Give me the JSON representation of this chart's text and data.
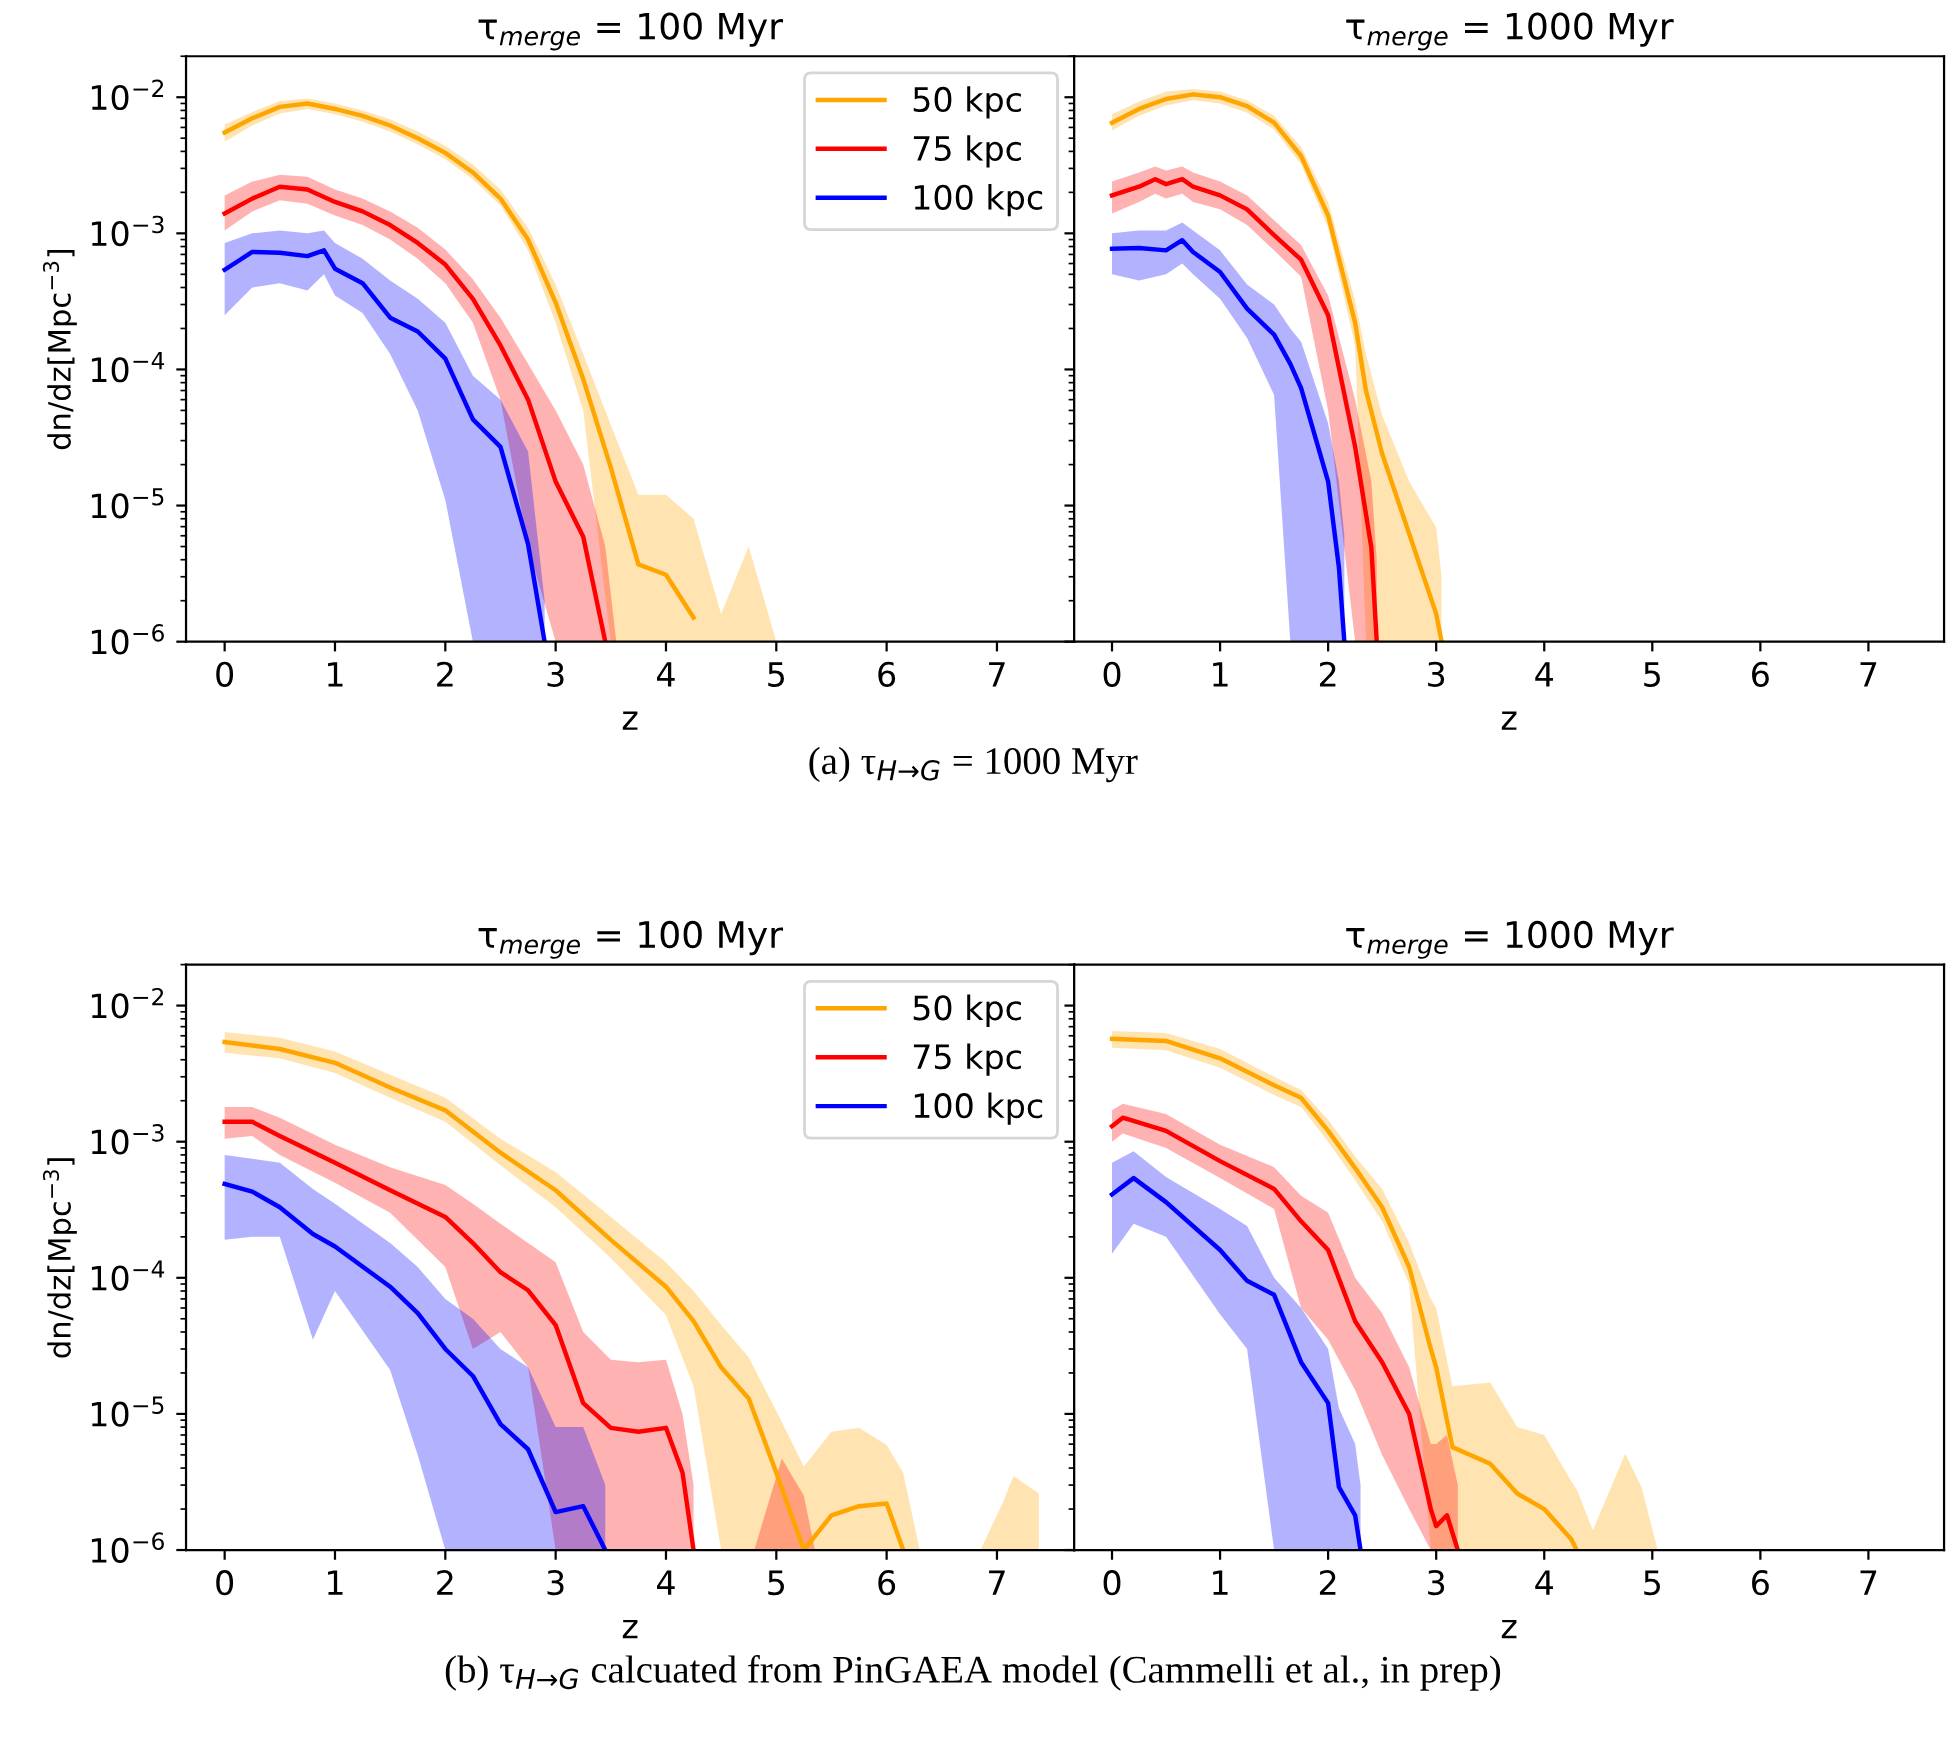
{
  "chart_data": [
    {
      "type": "line",
      "title": "τ$_{merge}$ = 100 Myr",
      "xlabel": "z",
      "ylabel": "dn/dz[Mpc$^{−3}$]",
      "log": "y",
      "legend": "top right",
      "xlim": [
        -0.35,
        7.7
      ],
      "ylim": [
        1e-06,
        0.02
      ],
      "xticks": [
        0,
        1,
        2,
        3,
        4,
        5,
        6,
        7
      ],
      "yticks": [
        {
          "value": 1e-06,
          "label": "10$^{−6}$"
        },
        {
          "value": 1e-05,
          "label": "10$^{−5}$"
        },
        {
          "value": 0.0001,
          "label": "10$^{−4}$"
        },
        {
          "value": 0.001,
          "label": "10$^{−3}$"
        },
        {
          "value": 0.01,
          "label": "10$^{−2}$"
        }
      ],
      "annotations": [
        "(a) τ$_{H→G}$ = 1000 Myr"
      ],
      "series": [
        {
          "name": "50 kpc",
          "color": "#ffa500",
          "x": [
            0,
            0.25,
            0.5,
            0.75,
            1,
            1.25,
            1.5,
            1.75,
            2,
            2.25,
            2.5,
            2.75,
            3,
            3.25,
            3.5,
            3.75,
            4,
            4.25,
            4.5,
            4.75,
            5
          ],
          "values": [
            0.0055,
            0.007,
            0.0085,
            0.009,
            0.0082,
            0.0073,
            0.0062,
            0.005,
            0.0039,
            0.0028,
            0.0018,
            0.0009,
            0.00031,
            8.5e-05,
            1.9e-05,
            3.7e-06,
            3.1e-06,
            1.5e-06,
            null,
            null,
            null
          ],
          "lower": [
            0.0047,
            0.0062,
            0.0076,
            0.0082,
            0.0075,
            0.0066,
            0.0056,
            0.0045,
            0.0035,
            0.0025,
            0.0016,
            0.00075,
            0.00022,
            5e-05,
            1e-06,
            1e-06,
            1e-06,
            1e-06,
            1e-06,
            1e-06,
            1e-06
          ],
          "upper": [
            0.0063,
            0.0078,
            0.0094,
            0.0098,
            0.009,
            0.008,
            0.0069,
            0.0056,
            0.0044,
            0.0032,
            0.0021,
            0.0011,
            0.00042,
            0.00013,
            3.9e-05,
            1.2e-05,
            1.2e-05,
            8e-06,
            1.6e-06,
            5e-06,
            1e-06
          ]
        },
        {
          "name": "75 kpc",
          "color": "#ff0000",
          "x": [
            0,
            0.25,
            0.5,
            0.75,
            1,
            1.25,
            1.5,
            1.75,
            2,
            2.25,
            2.5,
            2.75,
            3,
            3.25,
            3.45,
            3.55
          ],
          "values": [
            0.0014,
            0.0018,
            0.0022,
            0.0021,
            0.0017,
            0.00145,
            0.00115,
            0.00085,
            0.00059,
            0.00033,
            0.00015,
            6e-05,
            1.5e-05,
            5.9e-06,
            1e-06,
            null
          ],
          "lower": [
            0.00105,
            0.00145,
            0.00175,
            0.00165,
            0.00135,
            0.00115,
            0.0009,
            0.00065,
            0.00043,
            0.00022,
            6e-05,
            5e-06,
            1e-06,
            1e-06,
            1e-06,
            1e-06
          ],
          "upper": [
            0.0019,
            0.0024,
            0.0027,
            0.0026,
            0.0021,
            0.0018,
            0.00145,
            0.0011,
            0.00076,
            0.00046,
            0.00024,
            0.00011,
            5e-05,
            2e-05,
            5e-06,
            1e-06
          ]
        },
        {
          "name": "100 kpc",
          "color": "#0000ff",
          "x": [
            0,
            0.25,
            0.5,
            0.75,
            0.9,
            1,
            1.25,
            1.5,
            1.75,
            2,
            2.25,
            2.5,
            2.75,
            2.9
          ],
          "values": [
            0.00054,
            0.00073,
            0.00072,
            0.00068,
            0.00075,
            0.00055,
            0.00043,
            0.00024,
            0.00019,
            0.00012,
            4.3e-05,
            2.7e-05,
            5.2e-06,
            1e-06
          ],
          "lower": [
            0.00025,
            0.0004,
            0.00043,
            0.00038,
            0.0005,
            0.00035,
            0.00026,
            0.00013,
            5e-05,
            1.1e-05,
            1e-06,
            1e-06,
            1e-06,
            1e-06
          ],
          "upper": [
            0.00085,
            0.001,
            0.00105,
            0.001,
            0.00105,
            0.00085,
            0.00065,
            0.00045,
            0.00033,
            0.00022,
            9e-05,
            6e-05,
            2.5e-05,
            2e-06
          ]
        }
      ]
    },
    {
      "type": "line",
      "title": "τ$_{merge}$ = 1000 Myr",
      "xlabel": "z",
      "log": "y",
      "tick_labels": "x",
      "xlim": [
        -0.35,
        7.7
      ],
      "ylim": [
        1e-06,
        0.02
      ],
      "xticks": [
        0,
        1,
        2,
        3,
        4,
        5,
        6,
        7
      ],
      "yticks": [
        {
          "value": 1e-06,
          "label": null
        },
        {
          "value": 1e-05,
          "label": null
        },
        {
          "value": 0.0001,
          "label": null
        },
        {
          "value": 0.001,
          "label": null
        },
        {
          "value": 0.01,
          "label": null
        }
      ],
      "series": [
        {
          "color": "#ffa500",
          "x": [
            0,
            0.25,
            0.5,
            0.75,
            1,
            1.25,
            1.5,
            1.75,
            2,
            2.25,
            2.35,
            2.5,
            2.75,
            3.0,
            3.05
          ],
          "values": [
            0.0065,
            0.0082,
            0.0097,
            0.0105,
            0.01,
            0.0086,
            0.0065,
            0.0037,
            0.00135,
            0.00022,
            7e-05,
            2.4e-05,
            6.2e-06,
            1.6e-06,
            1e-06
          ],
          "lower": [
            0.0057,
            0.0073,
            0.0087,
            0.0095,
            0.009,
            0.0077,
            0.0058,
            0.0032,
            0.0011,
            0.00015,
            1e-06,
            1e-06,
            1e-06,
            1e-06,
            1e-06
          ],
          "upper": [
            0.0075,
            0.0093,
            0.011,
            0.0115,
            0.011,
            0.0095,
            0.0073,
            0.0043,
            0.0017,
            0.00032,
            0.00013,
            4.6e-05,
            1.5e-05,
            6.9e-06,
            3e-06
          ]
        },
        {
          "color": "#ff0000",
          "x": [
            0,
            0.25,
            0.4,
            0.5,
            0.65,
            0.75,
            1,
            1.25,
            1.5,
            1.75,
            2,
            2.25,
            2.4,
            2.45
          ],
          "values": [
            0.0019,
            0.0022,
            0.0025,
            0.0023,
            0.0025,
            0.0022,
            0.0019,
            0.0015,
            0.00097,
            0.00064,
            0.00025,
            2.7e-05,
            4.9e-06,
            1e-06
          ],
          "lower": [
            0.0014,
            0.0017,
            0.00195,
            0.0018,
            0.00195,
            0.0017,
            0.0015,
            0.00115,
            0.00075,
            0.00048,
            5e-05,
            1e-06,
            1e-06,
            1e-06
          ],
          "upper": [
            0.0024,
            0.0028,
            0.0031,
            0.0029,
            0.0031,
            0.0028,
            0.0024,
            0.0019,
            0.00125,
            0.00082,
            0.00035,
            6e-05,
            1.5e-05,
            4e-06
          ]
        },
        {
          "color": "#0000ff",
          "x": [
            0,
            0.25,
            0.5,
            0.65,
            0.75,
            1,
            1.25,
            1.5,
            1.65,
            1.75,
            2,
            2.1,
            2.15
          ],
          "values": [
            0.00077,
            0.00078,
            0.00075,
            0.00089,
            0.00073,
            0.00052,
            0.00028,
            0.00018,
            0.00011,
            7.3e-05,
            1.5e-05,
            3.5e-06,
            1e-06
          ],
          "lower": [
            0.0005,
            0.00045,
            0.0005,
            0.0006,
            0.0005,
            0.00033,
            0.00017,
            6.5e-05,
            1e-06,
            1e-06,
            1e-06,
            1e-06,
            1e-06
          ],
          "upper": [
            0.001,
            0.00105,
            0.00105,
            0.0012,
            0.00105,
            0.00075,
            0.00042,
            0.0003,
            0.0002,
            0.00016,
            4e-05,
            1.5e-05,
            6e-06
          ]
        }
      ]
    },
    {
      "type": "line",
      "title": "τ$_{merge}$ = 100 Myr",
      "xlabel": "z",
      "ylabel": "dn/dz[Mpc$^{−3}$]",
      "log": "y",
      "legend": "top right",
      "xlim": [
        -0.35,
        7.7
      ],
      "ylim": [
        1e-06,
        0.02
      ],
      "xticks": [
        0,
        1,
        2,
        3,
        4,
        5,
        6,
        7
      ],
      "yticks": [
        {
          "value": 1e-06,
          "label": "10$^{−6}$"
        },
        {
          "value": 1e-05,
          "label": "10$^{−5}$"
        },
        {
          "value": 0.0001,
          "label": "10$^{−4}$"
        },
        {
          "value": 0.001,
          "label": "10$^{−3}$"
        },
        {
          "value": 0.01,
          "label": "10$^{−2}$"
        }
      ],
      "annotations": [
        "(b) τ$_{H→G}$ calcuated from PinGAEA model (Cammelli et al., in prep)"
      ],
      "series": [
        {
          "name": "50 kpc",
          "color": "#ffa500",
          "x": [
            0,
            0.5,
            1,
            1.5,
            2,
            2.5,
            3,
            3.5,
            4,
            4.25,
            4.5,
            4.75,
            5,
            5.25,
            5.5,
            5.75,
            6,
            6.15,
            6.3,
            6.6,
            6.85,
            7.05,
            7.15,
            7.38
          ],
          "values": [
            0.0054,
            0.0048,
            0.0038,
            0.0025,
            0.0017,
            0.00083,
            0.00044,
            0.00019,
            8.6e-05,
            4.8e-05,
            2.2e-05,
            1.3e-05,
            3.7e-06,
            1e-06,
            1.8e-06,
            2.1e-06,
            2.2e-06,
            1e-06,
            null,
            null,
            null,
            null,
            null,
            null
          ],
          "lower": [
            0.0045,
            0.0041,
            0.0032,
            0.0021,
            0.0014,
            0.00067,
            0.00033,
            0.00014,
            5.3e-05,
            1.6e-05,
            1e-06,
            1e-06,
            1e-06,
            1e-06,
            1e-06,
            1e-06,
            1e-06,
            1e-06,
            1e-06,
            null,
            1e-06,
            1e-06,
            1e-06,
            1e-06
          ],
          "upper": [
            0.0064,
            0.0058,
            0.0046,
            0.0031,
            0.0021,
            0.00105,
            0.0006,
            0.00028,
            0.00013,
            8e-05,
            4.5e-05,
            2.6e-05,
            1.05e-05,
            4.1e-06,
            7.4e-06,
            7.9e-06,
            5.9e-06,
            3.7e-06,
            1e-06,
            null,
            1e-06,
            2.2e-06,
            3.5e-06,
            2.6e-06
          ]
        },
        {
          "name": "75 kpc",
          "color": "#ff0000",
          "x": [
            0,
            0.25,
            0.5,
            1,
            1.5,
            2,
            2.25,
            2.5,
            2.75,
            3,
            3.25,
            3.5,
            3.75,
            4,
            4.15,
            4.25,
            4.5,
            4.8,
            5.05,
            5.25,
            5.35
          ],
          "values": [
            0.0014,
            0.0014,
            0.0011,
            0.0007,
            0.00044,
            0.00028,
            0.00018,
            0.00011,
            8.1e-05,
            4.5e-05,
            1.2e-05,
            7.9e-06,
            7.4e-06,
            7.9e-06,
            3.7e-06,
            1e-06,
            null,
            null,
            null,
            null,
            null
          ],
          "lower": [
            0.00105,
            0.0011,
            0.0008,
            0.0005,
            0.0003,
            0.00012,
            3e-05,
            4e-05,
            2.2e-05,
            1e-06,
            1e-06,
            1e-06,
            1e-06,
            1e-06,
            1e-06,
            1e-06,
            null,
            1e-06,
            1e-06,
            1e-06,
            1e-06
          ],
          "upper": [
            0.0018,
            0.0018,
            0.0015,
            0.00095,
            0.00065,
            0.00048,
            0.00035,
            0.00025,
            0.00018,
            0.00013,
            4e-05,
            2.5e-05,
            2.4e-05,
            2.5e-05,
            1e-05,
            3e-06,
            null,
            1e-06,
            4.7e-06,
            2.5e-06,
            1e-06
          ]
        },
        {
          "name": "100 kpc",
          "color": "#0000ff",
          "x": [
            0,
            0.25,
            0.5,
            0.8,
            1,
            1.5,
            1.75,
            2,
            2.25,
            2.5,
            2.75,
            3,
            3.25,
            3.45
          ],
          "values": [
            0.00049,
            0.00043,
            0.00033,
            0.00021,
            0.00017,
            8.6e-05,
            5.5e-05,
            3e-05,
            1.9e-05,
            8.4e-06,
            5.5e-06,
            1.9e-06,
            2.1e-06,
            1e-06
          ],
          "lower": [
            0.00019,
            0.0002,
            0.0002,
            3.5e-05,
            8e-05,
            2.1e-05,
            5e-06,
            1e-06,
            1e-06,
            1e-06,
            1e-06,
            1e-06,
            1e-06,
            1e-06
          ],
          "upper": [
            0.0008,
            0.00075,
            0.0007,
            0.00045,
            0.00035,
            0.00018,
            0.00012,
            7e-05,
            5e-05,
            3e-05,
            2.2e-05,
            8e-06,
            8e-06,
            3e-06
          ]
        }
      ]
    },
    {
      "type": "line",
      "title": "τ$_{merge}$ = 1000 Myr",
      "xlabel": "z",
      "log": "y",
      "tick_labels": "x",
      "xlim": [
        -0.35,
        7.7
      ],
      "ylim": [
        1e-06,
        0.02
      ],
      "xticks": [
        0,
        1,
        2,
        3,
        4,
        5,
        6,
        7
      ],
      "yticks": [
        {
          "value": 1e-06,
          "label": null
        },
        {
          "value": 1e-05,
          "label": null
        },
        {
          "value": 0.0001,
          "label": null
        },
        {
          "value": 0.001,
          "label": null
        },
        {
          "value": 0.01,
          "label": null
        }
      ],
      "series": [
        {
          "color": "#ffa500",
          "x": [
            0,
            0.5,
            1,
            1.5,
            1.75,
            2,
            2.25,
            2.5,
            2.75,
            2.95,
            3,
            3.15,
            3.5,
            3.75,
            4,
            4.25,
            4.3,
            4.45,
            4.75,
            4.9,
            5.05
          ],
          "values": [
            0.0057,
            0.0055,
            0.0041,
            0.0026,
            0.0021,
            0.0012,
            0.00064,
            0.00033,
            0.00012,
            3e-05,
            2.2e-05,
            5.7e-06,
            4.3e-06,
            2.6e-06,
            2e-06,
            1.2e-06,
            1e-06,
            null,
            null,
            null,
            null
          ],
          "lower": [
            0.0049,
            0.0047,
            0.0035,
            0.0022,
            0.0018,
            0.001,
            0.00052,
            0.00026,
            9e-05,
            1e-06,
            1e-06,
            1e-06,
            1e-06,
            1e-06,
            1e-06,
            1e-06,
            1e-06,
            1e-06,
            1e-06,
            1e-06,
            1e-06
          ],
          "upper": [
            0.0065,
            0.0063,
            0.0048,
            0.003,
            0.0024,
            0.00145,
            0.00078,
            0.00045,
            0.00018,
            7e-05,
            6e-05,
            1.6e-05,
            1.7e-05,
            8e-06,
            7e-06,
            3.2e-06,
            2.8e-06,
            1.4e-06,
            5.1e-06,
            2.9e-06,
            1e-06
          ]
        },
        {
          "color": "#ff0000",
          "x": [
            0,
            0.1,
            0.5,
            1,
            1.5,
            1.75,
            2,
            2.25,
            2.5,
            2.75,
            2.95,
            3,
            3.1,
            3.2
          ],
          "values": [
            0.0013,
            0.0015,
            0.0012,
            0.00072,
            0.00045,
            0.00026,
            0.00016,
            4.8e-05,
            2.4e-05,
            1e-05,
            2e-06,
            1.5e-06,
            1.8e-06,
            1e-06
          ],
          "lower": [
            0.001,
            0.00115,
            0.0009,
            0.00054,
            0.00032,
            6e-05,
            3.5e-05,
            1.5e-05,
            5e-06,
            2e-06,
            1e-06,
            1e-06,
            1e-06,
            1e-06
          ],
          "upper": [
            0.0017,
            0.0019,
            0.0016,
            0.00095,
            0.00065,
            0.0004,
            0.0003,
            0.0001,
            5.5e-05,
            2.2e-05,
            6e-06,
            6e-06,
            7e-06,
            3e-06
          ]
        },
        {
          "color": "#0000ff",
          "x": [
            0,
            0.2,
            0.5,
            1,
            1.25,
            1.5,
            1.75,
            2,
            2.1,
            2.25,
            2.3
          ],
          "values": [
            0.00041,
            0.00054,
            0.00036,
            0.00016,
            9.5e-05,
            7.5e-05,
            2.4e-05,
            1.2e-05,
            2.9e-06,
            1.8e-06,
            1e-06
          ],
          "lower": [
            0.00015,
            0.00025,
            0.0002,
            5.4e-05,
            3e-05,
            1e-06,
            1e-06,
            1e-06,
            1e-06,
            1e-06,
            1e-06
          ],
          "upper": [
            0.0007,
            0.00085,
            0.00055,
            0.00032,
            0.00024,
            0.0001,
            6e-05,
            3e-05,
            1.1e-05,
            6e-06,
            3e-06
          ]
        }
      ]
    }
  ]
}
